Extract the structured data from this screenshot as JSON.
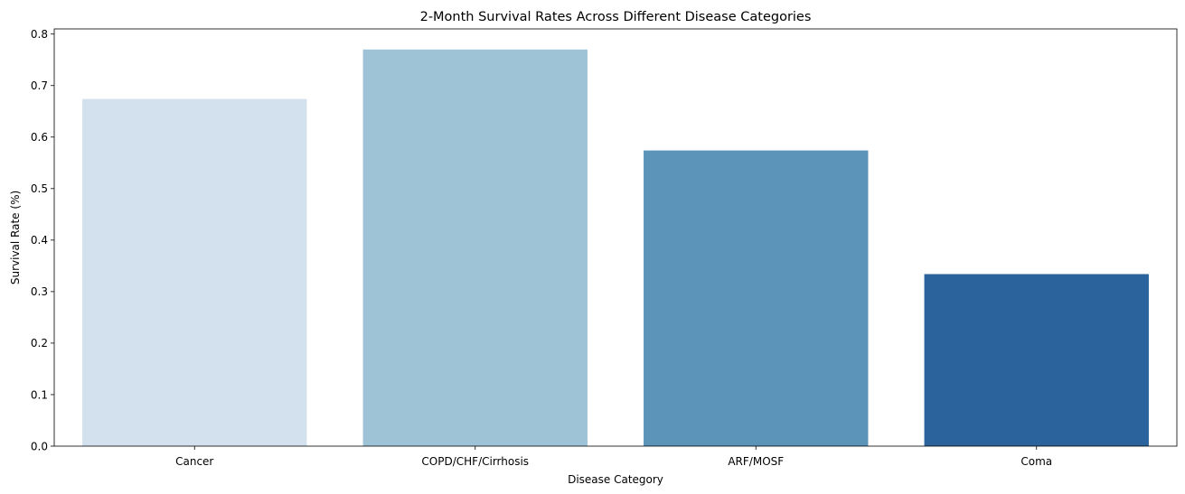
{
  "chart_data": {
    "type": "bar",
    "title": "2-Month Survival Rates Across Different Disease Categories",
    "xlabel": "Disease Category",
    "ylabel": "Survival Rate (%)",
    "categories": [
      "Cancer",
      "COPD/CHF/Cirrhosis",
      "ARF/MOSF",
      "Coma"
    ],
    "values": [
      0.674,
      0.77,
      0.574,
      0.334
    ],
    "colors": [
      "#d3e1ef",
      "#9ec2d6",
      "#5b93b9",
      "#2b649c"
    ],
    "ylim": [
      0,
      0.81
    ],
    "yticks": [
      0.0,
      0.1,
      0.2,
      0.3,
      0.4,
      0.5,
      0.6,
      0.7,
      0.8
    ],
    "ytick_labels": [
      "0.0",
      "0.1",
      "0.2",
      "0.3",
      "0.4",
      "0.5",
      "0.6",
      "0.7",
      "0.8"
    ],
    "grid": false,
    "legend": "none"
  }
}
